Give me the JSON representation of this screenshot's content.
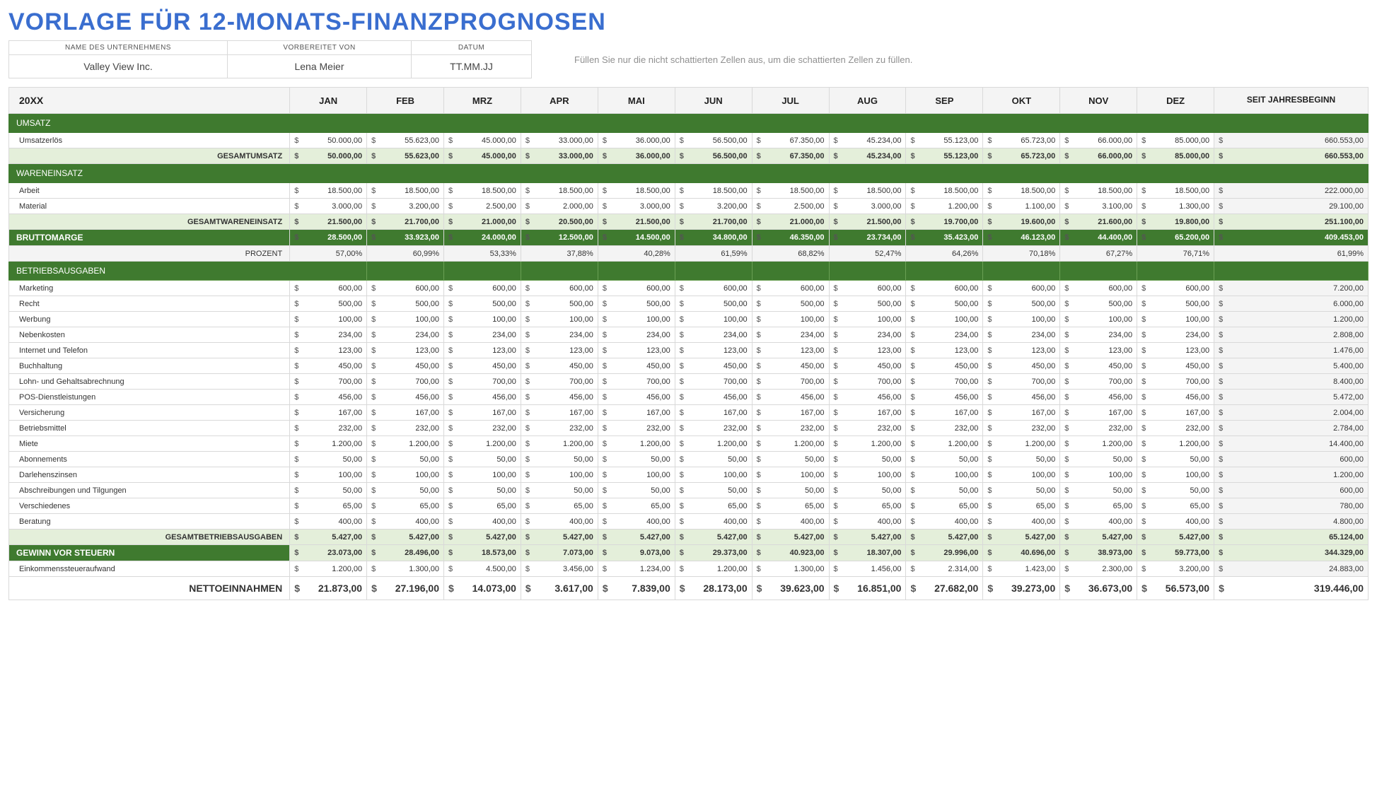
{
  "title": "VORLAGE FÜR 12-MONATS-FINANZPROGNOSEN",
  "meta": {
    "company_label": "NAME DES UNTERNEHMENS",
    "company": "Valley View Inc.",
    "prepared_label": "VORBEREITET VON",
    "prepared": "Lena Meier",
    "date_label": "DATUM",
    "date": "TT.MM.JJ"
  },
  "hint": "Füllen Sie nur die nicht schattierten Zellen aus, um die schattierten Zellen zu füllen.",
  "year": "20XX",
  "months": [
    "JAN",
    "FEB",
    "MRZ",
    "APR",
    "MAI",
    "JUN",
    "JUL",
    "AUG",
    "SEP",
    "OKT",
    "NOV",
    "DEZ"
  ],
  "ytd_label": "SEIT JAHRESBEGINN",
  "currency": "$",
  "sections": {
    "umsatz": {
      "title": "UMSATZ",
      "rows": [
        {
          "label": "Umsatzerlös",
          "vals": [
            "50.000,00",
            "55.623,00",
            "45.000,00",
            "33.000,00",
            "36.000,00",
            "56.500,00",
            "67.350,00",
            "45.234,00",
            "55.123,00",
            "65.723,00",
            "66.000,00",
            "85.000,00"
          ],
          "ytd": "660.553,00"
        }
      ],
      "total": {
        "label": "GESAMTUMSATZ",
        "vals": [
          "50.000,00",
          "55.623,00",
          "45.000,00",
          "33.000,00",
          "36.000,00",
          "56.500,00",
          "67.350,00",
          "45.234,00",
          "55.123,00",
          "65.723,00",
          "66.000,00",
          "85.000,00"
        ],
        "ytd": "660.553,00"
      }
    },
    "cogs": {
      "title": "WARENEINSATZ",
      "rows": [
        {
          "label": "Arbeit",
          "vals": [
            "18.500,00",
            "18.500,00",
            "18.500,00",
            "18.500,00",
            "18.500,00",
            "18.500,00",
            "18.500,00",
            "18.500,00",
            "18.500,00",
            "18.500,00",
            "18.500,00",
            "18.500,00"
          ],
          "ytd": "222.000,00"
        },
        {
          "label": "Material",
          "vals": [
            "3.000,00",
            "3.200,00",
            "2.500,00",
            "2.000,00",
            "3.000,00",
            "3.200,00",
            "2.500,00",
            "3.000,00",
            "1.200,00",
            "1.100,00",
            "3.100,00",
            "1.300,00"
          ],
          "ytd": "29.100,00"
        }
      ],
      "total": {
        "label": "GESAMTWARENEINSATZ",
        "vals": [
          "21.500,00",
          "21.700,00",
          "21.000,00",
          "20.500,00",
          "21.500,00",
          "21.700,00",
          "21.000,00",
          "21.500,00",
          "19.700,00",
          "19.600,00",
          "21.600,00",
          "19.800,00"
        ],
        "ytd": "251.100,00"
      }
    },
    "gross": {
      "label": "BRUTTOMARGE",
      "vals": [
        "28.500,00",
        "33.923,00",
        "24.000,00",
        "12.500,00",
        "14.500,00",
        "34.800,00",
        "46.350,00",
        "23.734,00",
        "35.423,00",
        "46.123,00",
        "44.400,00",
        "65.200,00"
      ],
      "ytd": "409.453,00"
    },
    "pct": {
      "label": "PROZENT",
      "vals": [
        "57,00%",
        "60,99%",
        "53,33%",
        "37,88%",
        "40,28%",
        "61,59%",
        "68,82%",
        "52,47%",
        "64,26%",
        "70,18%",
        "67,27%",
        "76,71%"
      ],
      "ytd": "61,99%"
    },
    "opex": {
      "title": "BETRIEBSAUSGABEN",
      "rows": [
        {
          "label": "Marketing",
          "vals": [
            "600,00",
            "600,00",
            "600,00",
            "600,00",
            "600,00",
            "600,00",
            "600,00",
            "600,00",
            "600,00",
            "600,00",
            "600,00",
            "600,00"
          ],
          "ytd": "7.200,00"
        },
        {
          "label": "Recht",
          "vals": [
            "500,00",
            "500,00",
            "500,00",
            "500,00",
            "500,00",
            "500,00",
            "500,00",
            "500,00",
            "500,00",
            "500,00",
            "500,00",
            "500,00"
          ],
          "ytd": "6.000,00"
        },
        {
          "label": "Werbung",
          "vals": [
            "100,00",
            "100,00",
            "100,00",
            "100,00",
            "100,00",
            "100,00",
            "100,00",
            "100,00",
            "100,00",
            "100,00",
            "100,00",
            "100,00"
          ],
          "ytd": "1.200,00"
        },
        {
          "label": "Nebenkosten",
          "vals": [
            "234,00",
            "234,00",
            "234,00",
            "234,00",
            "234,00",
            "234,00",
            "234,00",
            "234,00",
            "234,00",
            "234,00",
            "234,00",
            "234,00"
          ],
          "ytd": "2.808,00"
        },
        {
          "label": "Internet und Telefon",
          "vals": [
            "123,00",
            "123,00",
            "123,00",
            "123,00",
            "123,00",
            "123,00",
            "123,00",
            "123,00",
            "123,00",
            "123,00",
            "123,00",
            "123,00"
          ],
          "ytd": "1.476,00"
        },
        {
          "label": "Buchhaltung",
          "vals": [
            "450,00",
            "450,00",
            "450,00",
            "450,00",
            "450,00",
            "450,00",
            "450,00",
            "450,00",
            "450,00",
            "450,00",
            "450,00",
            "450,00"
          ],
          "ytd": "5.400,00"
        },
        {
          "label": "Lohn- und Gehaltsabrechnung",
          "vals": [
            "700,00",
            "700,00",
            "700,00",
            "700,00",
            "700,00",
            "700,00",
            "700,00",
            "700,00",
            "700,00",
            "700,00",
            "700,00",
            "700,00"
          ],
          "ytd": "8.400,00"
        },
        {
          "label": "POS-Dienstleistungen",
          "vals": [
            "456,00",
            "456,00",
            "456,00",
            "456,00",
            "456,00",
            "456,00",
            "456,00",
            "456,00",
            "456,00",
            "456,00",
            "456,00",
            "456,00"
          ],
          "ytd": "5.472,00"
        },
        {
          "label": "Versicherung",
          "vals": [
            "167,00",
            "167,00",
            "167,00",
            "167,00",
            "167,00",
            "167,00",
            "167,00",
            "167,00",
            "167,00",
            "167,00",
            "167,00",
            "167,00"
          ],
          "ytd": "2.004,00"
        },
        {
          "label": "Betriebsmittel",
          "vals": [
            "232,00",
            "232,00",
            "232,00",
            "232,00",
            "232,00",
            "232,00",
            "232,00",
            "232,00",
            "232,00",
            "232,00",
            "232,00",
            "232,00"
          ],
          "ytd": "2.784,00"
        },
        {
          "label": "Miete",
          "vals": [
            "1.200,00",
            "1.200,00",
            "1.200,00",
            "1.200,00",
            "1.200,00",
            "1.200,00",
            "1.200,00",
            "1.200,00",
            "1.200,00",
            "1.200,00",
            "1.200,00",
            "1.200,00"
          ],
          "ytd": "14.400,00"
        },
        {
          "label": "Abonnements",
          "vals": [
            "50,00",
            "50,00",
            "50,00",
            "50,00",
            "50,00",
            "50,00",
            "50,00",
            "50,00",
            "50,00",
            "50,00",
            "50,00",
            "50,00"
          ],
          "ytd": "600,00"
        },
        {
          "label": "Darlehenszinsen",
          "vals": [
            "100,00",
            "100,00",
            "100,00",
            "100,00",
            "100,00",
            "100,00",
            "100,00",
            "100,00",
            "100,00",
            "100,00",
            "100,00",
            "100,00"
          ],
          "ytd": "1.200,00"
        },
        {
          "label": "Abschreibungen und Tilgungen",
          "vals": [
            "50,00",
            "50,00",
            "50,00",
            "50,00",
            "50,00",
            "50,00",
            "50,00",
            "50,00",
            "50,00",
            "50,00",
            "50,00",
            "50,00"
          ],
          "ytd": "600,00"
        },
        {
          "label": "Verschiedenes",
          "vals": [
            "65,00",
            "65,00",
            "65,00",
            "65,00",
            "65,00",
            "65,00",
            "65,00",
            "65,00",
            "65,00",
            "65,00",
            "65,00",
            "65,00"
          ],
          "ytd": "780,00"
        },
        {
          "label": "Beratung",
          "vals": [
            "400,00",
            "400,00",
            "400,00",
            "400,00",
            "400,00",
            "400,00",
            "400,00",
            "400,00",
            "400,00",
            "400,00",
            "400,00",
            "400,00"
          ],
          "ytd": "4.800,00"
        }
      ],
      "total": {
        "label": "GESAMTBETRIEBSAUSGABEN",
        "vals": [
          "5.427,00",
          "5.427,00",
          "5.427,00",
          "5.427,00",
          "5.427,00",
          "5.427,00",
          "5.427,00",
          "5.427,00",
          "5.427,00",
          "5.427,00",
          "5.427,00",
          "5.427,00"
        ],
        "ytd": "65.124,00"
      }
    },
    "pbt": {
      "label": "GEWINN VOR STEUERN",
      "vals": [
        "23.073,00",
        "28.496,00",
        "18.573,00",
        "7.073,00",
        "9.073,00",
        "29.373,00",
        "40.923,00",
        "18.307,00",
        "29.996,00",
        "40.696,00",
        "38.973,00",
        "59.773,00"
      ],
      "ytd": "344.329,00"
    },
    "tax": {
      "label": "Einkommenssteueraufwand",
      "vals": [
        "1.200,00",
        "1.300,00",
        "4.500,00",
        "3.456,00",
        "1.234,00",
        "1.200,00",
        "1.300,00",
        "1.456,00",
        "2.314,00",
        "1.423,00",
        "2.300,00",
        "3.200,00"
      ],
      "ytd": "24.883,00"
    },
    "net": {
      "label": "NETTOEINNAHMEN",
      "vals": [
        "21.873,00",
        "27.196,00",
        "14.073,00",
        "3.617,00",
        "7.839,00",
        "28.173,00",
        "39.623,00",
        "16.851,00",
        "27.682,00",
        "39.273,00",
        "36.673,00",
        "56.573,00"
      ],
      "ytd": "319.446,00"
    }
  },
  "colors": {
    "title": "#3a6ecf",
    "section_green": "#3f7a2f",
    "subtotal_green": "#e4efda",
    "header_grey": "#f4f4f4",
    "border": "#d9d9d9",
    "hint": "#909090"
  }
}
